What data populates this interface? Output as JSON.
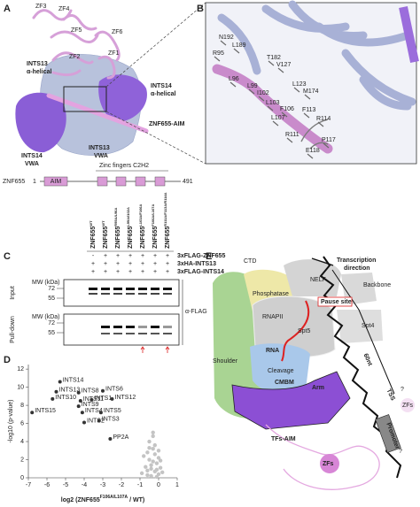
{
  "panels": {
    "A": {
      "label": "A",
      "zinc_fingers": [
        "ZF3",
        "ZF4",
        "ZF5",
        "ZF6",
        "ZF2",
        "ZF1"
      ],
      "annotations": [
        "INTS13",
        "α-helical",
        "INTS14",
        "α-helical",
        "ZNF655-AIM",
        "INTS14",
        "VWA",
        "INTS13",
        "VWA"
      ],
      "domain_map": {
        "title": "Zinc fingers C2H2",
        "protein": "ZNF655",
        "start": 1,
        "aim": "AIM",
        "end": 491
      }
    },
    "B": {
      "label": "B",
      "residues": [
        "N192",
        "L189",
        "R95",
        "T182",
        "V127",
        "L96",
        "L99",
        "I102",
        "L123",
        "M174",
        "L103",
        "F106",
        "F113",
        "R114",
        "L107",
        "R111",
        "P117",
        "E118"
      ]
    },
    "C": {
      "label": "C",
      "columns": [
        {
          "name": "ZNF655",
          "sup": "WT"
        },
        {
          "name": "ZNF655",
          "sup": "WT"
        },
        {
          "name": "ZNF655",
          "sup": "R95A/L96A"
        },
        {
          "name": "ZNF655",
          "sup": "L99A/I102A"
        },
        {
          "name": "ZNF655",
          "sup": "L103A/F106A"
        },
        {
          "name": "ZNF655",
          "sup": "F106A/L107A"
        },
        {
          "name": "ZNF655",
          "sup": "R111A/F113A/R114A"
        }
      ],
      "rows": [
        {
          "label": "3xFLAG-ZNF655",
          "signs": [
            "-",
            "+",
            "+",
            "+",
            "+",
            "+",
            "+"
          ]
        },
        {
          "label": "3xHA-INTS13",
          "signs": [
            "+",
            "+",
            "+",
            "+",
            "+",
            "+",
            "+"
          ]
        },
        {
          "label": "3xFLAG-INTS14",
          "signs": [
            "+",
            "+",
            "+",
            "+",
            "+",
            "+",
            "+"
          ]
        }
      ],
      "sections": [
        {
          "name": "Input",
          "mw_label": "MW (kDa)",
          "mw": [
            72,
            55
          ]
        },
        {
          "name": "Pull-down",
          "mw_label": "MW (kDa)",
          "mw": [
            72,
            55
          ]
        }
      ],
      "antibody": "α-FLAG"
    },
    "D": {
      "label": "D",
      "x_label": {
        "prefix": "log2 (ZNF655",
        "sup": "F106A/L107A",
        "suffix": " / WT)"
      },
      "y_label": "-log10 (p-value)",
      "xlim": [
        -7,
        1
      ],
      "xticks": [
        -7,
        -6,
        -5,
        -4,
        -3,
        -2,
        -1,
        0,
        1
      ],
      "ylim": [
        0,
        12.5
      ],
      "yticks": [
        0,
        2,
        4,
        6,
        8,
        10,
        12
      ],
      "points": [
        {
          "label": "INTS14",
          "x": -5.3,
          "y": 10.6,
          "color": "#8e44c9"
        },
        {
          "label": "INTS13",
          "x": -5.5,
          "y": 9.5,
          "color": "#8e44c9"
        },
        {
          "label": "INTS10",
          "x": -5.7,
          "y": 8.7,
          "color": "#8e44c9"
        },
        {
          "label": "INTS15",
          "x": -6.8,
          "y": 7.2,
          "color": "#8e44c9"
        },
        {
          "label": "INTS8",
          "x": -4.3,
          "y": 9.4,
          "color": "#1a9e8f"
        },
        {
          "label": "INTS9",
          "x": -4.3,
          "y": 7.9,
          "color": "#1a9e8f"
        },
        {
          "label": "INTS4",
          "x": -4.1,
          "y": 7.2,
          "color": "#1a9e8f"
        },
        {
          "label": "INTS11",
          "x": -4.2,
          "y": 8.5,
          "color": "#555555"
        },
        {
          "label": "INTS1",
          "x": -3.6,
          "y": 8.6,
          "color": "#555555"
        },
        {
          "label": "INTS12",
          "x": -2.5,
          "y": 8.7,
          "color": "#555555"
        },
        {
          "label": "INTS2",
          "x": -4.0,
          "y": 6.1,
          "color": "#555555"
        },
        {
          "label": "INTS6",
          "x": -3.0,
          "y": 9.6,
          "color": "#e0a030"
        },
        {
          "label": "INTS5",
          "x": -3.1,
          "y": 7.2,
          "color": "#e0a030"
        },
        {
          "label": "INTS3",
          "x": -3.2,
          "y": 6.3,
          "color": "#e0a030"
        },
        {
          "label": "PP2A",
          "x": -2.6,
          "y": 4.3,
          "color": "#e0a030"
        }
      ],
      "background": {
        "color": "#c4c4c4",
        "x": [
          -0.9,
          -0.7,
          -0.6,
          -0.5,
          -0.4,
          -0.3,
          -0.2,
          -0.1,
          0.0,
          0.1,
          -0.8,
          -0.6,
          -0.4,
          -0.3,
          -0.2,
          -0.1,
          0.0,
          0.2,
          -0.5,
          -0.3,
          -0.2,
          0.0,
          -0.4,
          -0.1,
          -0.6,
          0.1,
          -0.3,
          -0.5
        ],
        "y": [
          0.5,
          1.2,
          0.3,
          2.0,
          1.0,
          3.2,
          0.7,
          1.6,
          0.4,
          1.1,
          2.4,
          2.8,
          0.2,
          1.8,
          2.6,
          0.9,
          2.2,
          0.6,
          4.0,
          4.6,
          3.6,
          3.0,
          1.4,
          0.1,
          0.8,
          1.9,
          5.0,
          3.3
        ]
      }
    },
    "E": {
      "label": "E",
      "labels": [
        "CTD",
        "Phosphatase",
        "NELF",
        "Backbone",
        "Transcription",
        "direction",
        "Pause site",
        "RNAPII",
        "Spt5",
        "Spt4",
        "Shoulder",
        "RNA",
        "Cleavage",
        "CMBM",
        "Arm",
        "60nt",
        "TSS",
        "TFs-AIM",
        "ZFs",
        "Promoter",
        "ZFs",
        "?",
        "?"
      ]
    }
  }
}
